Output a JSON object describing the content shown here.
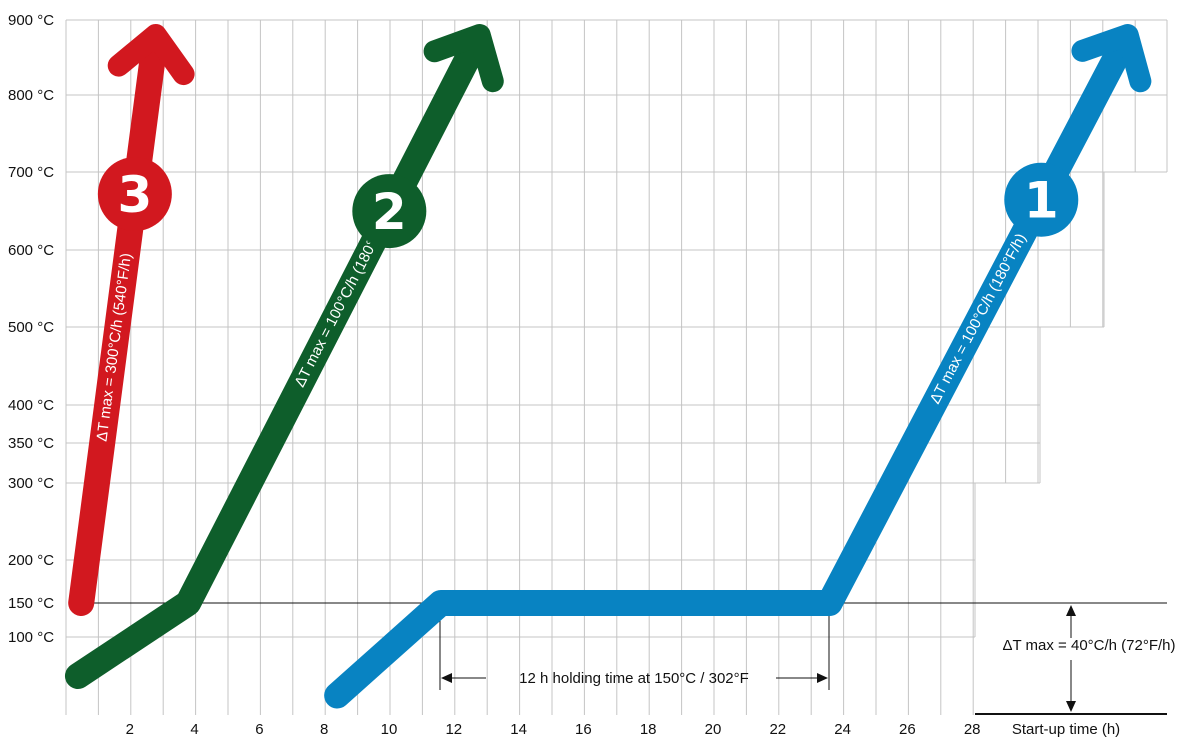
{
  "chart_data": {
    "type": "line",
    "title": "",
    "xlabel": "Start-up time  (h)",
    "ylabel": "",
    "x_ticks": [
      2,
      4,
      6,
      8,
      10,
      12,
      14,
      16,
      18,
      20,
      22,
      24,
      26,
      28
    ],
    "x_tick_labels": [
      "2",
      "4",
      "6",
      "8",
      "10",
      "12",
      "14",
      "16",
      "18",
      "20",
      "22",
      "24",
      "26",
      "28"
    ],
    "y_ticks": [
      100,
      150,
      200,
      300,
      350,
      400,
      500,
      600,
      700,
      800,
      900
    ],
    "y_tick_labels": [
      "100 °C",
      "150 °C",
      "200 °C",
      "300 °C",
      "350 °C",
      "400 °C",
      "500 °C",
      "600 °C",
      "700 °C",
      "800 °C",
      "900 °C"
    ],
    "xlim": [
      0,
      31
    ],
    "ylim": [
      20,
      900
    ],
    "grid": true,
    "series": [
      {
        "id": "3",
        "color": "#d2181f",
        "label": "ΔT max = 300°C/h (540°F/h)",
        "points": [
          [
            0.5,
            150
          ],
          [
            2.8,
            880
          ]
        ]
      },
      {
        "id": "2",
        "color": "#0e5e2b",
        "label": "ΔT max = 100°C/h (180°F/h)",
        "points": [
          [
            0.4,
            60
          ],
          [
            3.8,
            150
          ],
          [
            12.8,
            880
          ]
        ]
      },
      {
        "id": "1",
        "color": "#0883c2",
        "label": "ΔT max = 100°C/h (180°F/h)",
        "points": [
          [
            8.4,
            40
          ],
          [
            11.6,
            150
          ],
          [
            23.6,
            150
          ],
          [
            32.8,
            880
          ]
        ]
      }
    ],
    "annotations": {
      "holding": "12 h holding time at 150°C / 302°F",
      "startup_rate": "ΔT max = 40°C/h (72°F/h)"
    }
  }
}
